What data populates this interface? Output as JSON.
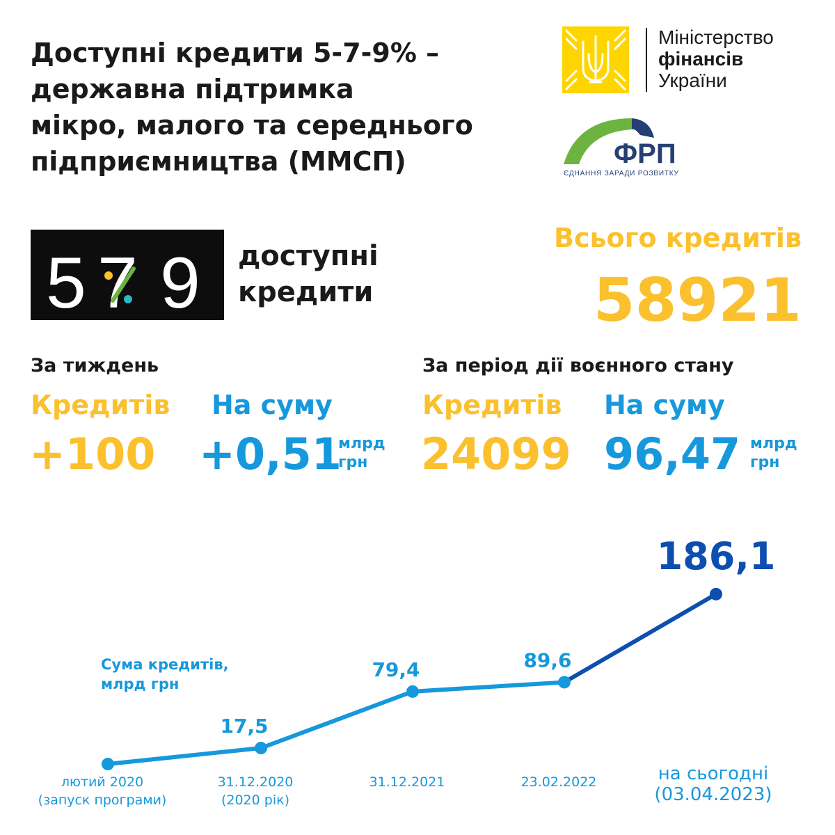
{
  "header": {
    "title_lines": [
      "Доступні кредити 5-7-9% –",
      "державна підтримка",
      "мікро, малого та середнього",
      "підприємництва (ММСП)"
    ]
  },
  "logos": {
    "ministry": {
      "line1": "Міністерство",
      "line2": "фінансів",
      "line3": "України"
    },
    "frp": {
      "name": "ФРП",
      "tagline": "ЄДНАННЯ ЗАРАДИ РОЗВИТКУ"
    },
    "program": {
      "digit1": "5",
      "digit2": "7",
      "digit3": "9",
      "label_line1": "доступні",
      "label_line2": "кредити"
    }
  },
  "total": {
    "label": "Всього кредитів",
    "value": "58921"
  },
  "weekly": {
    "heading": "За тиждень",
    "count_label": "Кредитів",
    "count_value": "+100",
    "sum_label": "На суму",
    "sum_value": "+0,51",
    "unit_line1": "млрд",
    "unit_line2": "грн"
  },
  "wartime": {
    "heading": "За період дії воєнного стану",
    "count_label": "Кредитів",
    "count_value": "24099",
    "sum_label": "На суму",
    "sum_value": "96,47",
    "unit_line1": "млрд",
    "unit_line2": "грн"
  },
  "colors": {
    "yellow": "#fbc02d",
    "light_blue": "#1698dc",
    "dark_blue": "#0d4fb0",
    "logo_yellow": "#ffd500",
    "frp_green": "#6cb33f",
    "frp_navy": "#263f73"
  },
  "chart_data": {
    "type": "line",
    "title": "Сума кредитів, млрд грн",
    "title_line1": "Сума кредитів,",
    "title_line2": "млрд грн",
    "x_labels": [
      [
        "лютий 2020",
        "(запуск програми)"
      ],
      [
        "31.12.2020",
        "(2020 рік)"
      ],
      [
        "31.12.2021"
      ],
      [
        "23.02.2022"
      ],
      [
        "на сьогодні",
        "(03.04.2023)"
      ]
    ],
    "values": [
      0,
      17.5,
      79.4,
      89.6,
      186.1
    ],
    "data_labels": [
      "",
      "17,5",
      "79,4",
      "89,6",
      "186,1"
    ],
    "highlight_last_segment": true,
    "grid": false,
    "legend": "none"
  }
}
